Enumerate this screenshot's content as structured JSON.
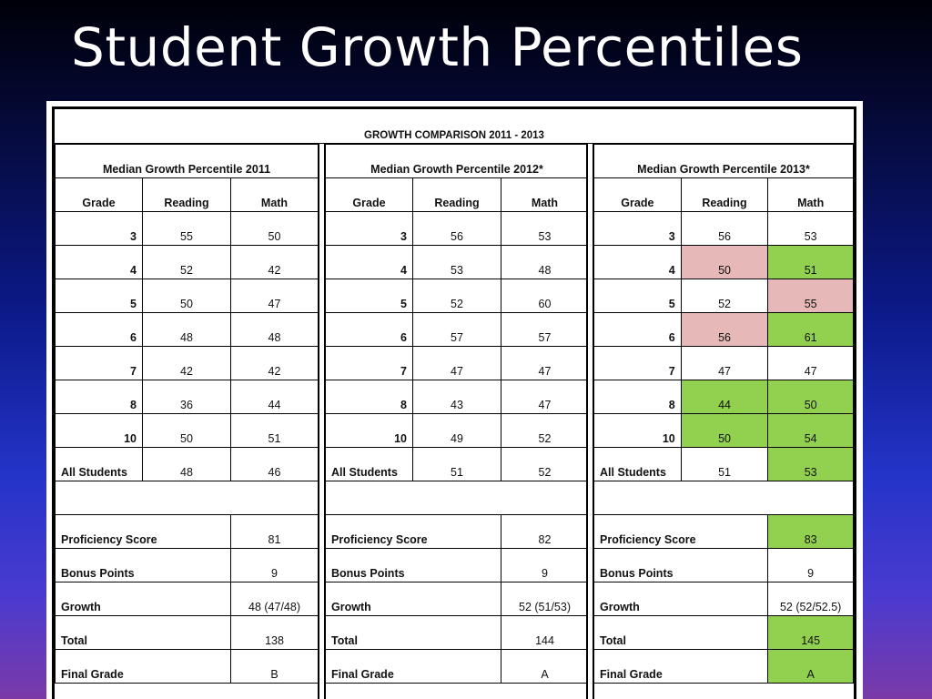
{
  "title": "Student Growth Percentiles",
  "header": "GROWTH COMPARISON 2011 - 2013",
  "columns": {
    "grade": "Grade",
    "reading": "Reading",
    "math": "Math"
  },
  "colors": {
    "decline": "#e6b9b8",
    "improve": "#92d050"
  },
  "sections": [
    {
      "title": "Median Growth Percentile 2011",
      "rows": [
        {
          "grade": "3",
          "reading": "55",
          "math": "50"
        },
        {
          "grade": "4",
          "reading": "52",
          "math": "42"
        },
        {
          "grade": "5",
          "reading": "50",
          "math": "47"
        },
        {
          "grade": "6",
          "reading": "48",
          "math": "48"
        },
        {
          "grade": "7",
          "reading": "42",
          "math": "42"
        },
        {
          "grade": "8",
          "reading": "36",
          "math": "44"
        },
        {
          "grade": "10",
          "reading": "50",
          "math": "51"
        },
        {
          "grade": "All Students",
          "reading": "48",
          "math": "46"
        }
      ],
      "summary": [
        {
          "label": "Proficiency Score",
          "value": "81"
        },
        {
          "label": "Bonus Points",
          "value": "9"
        },
        {
          "label": "Growth",
          "value": "48 (47/48)"
        },
        {
          "label": "Total",
          "value": "138"
        },
        {
          "label": "Final Grade",
          "value": "B"
        }
      ]
    },
    {
      "title": "Median Growth Percentile 2012*",
      "rows": [
        {
          "grade": "3",
          "reading": "56",
          "math": "53"
        },
        {
          "grade": "4",
          "reading": "53",
          "math": "48"
        },
        {
          "grade": "5",
          "reading": "52",
          "math": "60"
        },
        {
          "grade": "6",
          "reading": "57",
          "math": "57"
        },
        {
          "grade": "7",
          "reading": "47",
          "math": "47"
        },
        {
          "grade": "8",
          "reading": "43",
          "math": "47"
        },
        {
          "grade": "10",
          "reading": "49",
          "math": "52"
        },
        {
          "grade": "All Students",
          "reading": "51",
          "math": "52"
        }
      ],
      "summary": [
        {
          "label": "Proficiency Score",
          "value": "82"
        },
        {
          "label": "Bonus Points",
          "value": "9"
        },
        {
          "label": "Growth",
          "value": "52 (51/53)"
        },
        {
          "label": "Total",
          "value": "144"
        },
        {
          "label": "Final Grade",
          "value": "A"
        }
      ]
    },
    {
      "title": "Median Growth Percentile 2013*",
      "rows": [
        {
          "grade": "3",
          "reading": "56",
          "math": "53"
        },
        {
          "grade": "4",
          "reading": "50",
          "math": "51",
          "reading_hl": "red",
          "math_hl": "green"
        },
        {
          "grade": "5",
          "reading": "52",
          "math": "55",
          "math_hl": "red"
        },
        {
          "grade": "6",
          "reading": "56",
          "math": "61",
          "reading_hl": "red",
          "math_hl": "green"
        },
        {
          "grade": "7",
          "reading": "47",
          "math": "47"
        },
        {
          "grade": "8",
          "reading": "44",
          "math": "50",
          "reading_hl": "green",
          "math_hl": "green"
        },
        {
          "grade": "10",
          "reading": "50",
          "math": "54",
          "reading_hl": "green",
          "math_hl": "green"
        },
        {
          "grade": "All Students",
          "reading": "51",
          "math": "53",
          "math_hl": "green"
        }
      ],
      "summary": [
        {
          "label": "Proficiency Score",
          "value": "83",
          "hl": "green"
        },
        {
          "label": "Bonus Points",
          "value": "9"
        },
        {
          "label": "Growth",
          "value": "52 (52/52.5)"
        },
        {
          "label": "Total",
          "value": "145",
          "hl": "green"
        },
        {
          "label": "Final Grade",
          "value": "A",
          "hl": "green"
        }
      ]
    }
  ]
}
